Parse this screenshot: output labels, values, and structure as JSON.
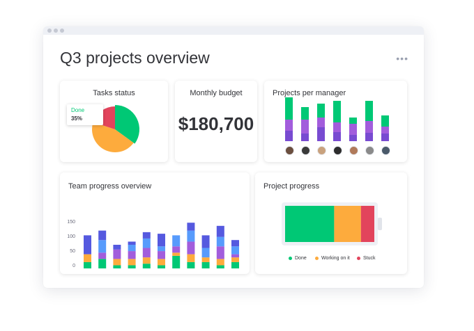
{
  "page": {
    "title": "Q3 projects overview"
  },
  "colors": {
    "done": "#00c875",
    "working": "#fdab3d",
    "stuck": "#e2445c",
    "purple": "#a25ddc",
    "blue": "#579bfc",
    "indigo": "#5559df",
    "dark_purple": "#784bd1"
  },
  "tasks_status": {
    "title": "Tasks status",
    "tooltip": {
      "label": "Done",
      "value": "35%"
    },
    "chart_data": {
      "type": "pie",
      "slices": [
        {
          "name": "Done",
          "value": 35,
          "color": "#00c875"
        },
        {
          "name": "Working on it",
          "value": 45,
          "color": "#fdab3d"
        },
        {
          "name": "Stuck",
          "value": 20,
          "color": "#e2445c"
        }
      ]
    }
  },
  "monthly_budget": {
    "title": "Monthly budget",
    "value": "$180,700"
  },
  "projects_per_manager": {
    "title": "Projects per manager",
    "avatars": [
      "avatar-1",
      "avatar-2",
      "avatar-3",
      "avatar-4",
      "avatar-5",
      "avatar-6",
      "avatar-7"
    ],
    "chart_data": {
      "type": "bar",
      "stacked": true,
      "segments": [
        "#00c875",
        "#a25ddc",
        "#784bd1"
      ],
      "bars": [
        [
          32,
          16,
          15
        ],
        [
          18,
          20,
          11
        ],
        [
          20,
          14,
          20
        ],
        [
          31,
          14,
          13
        ],
        [
          9,
          16,
          9
        ],
        [
          29,
          17,
          12
        ],
        [
          16,
          10,
          11
        ]
      ]
    }
  },
  "team_progress": {
    "title": "Team progress overview",
    "chart_data": {
      "type": "bar",
      "stacked": true,
      "yticks": [
        "150",
        "100",
        "50",
        "0"
      ],
      "ymax": 150,
      "segments": [
        "#00c875",
        "#fdab3d",
        "#a25ddc",
        "#579bfc",
        "#5559df"
      ],
      "bars": [
        [
          20,
          25,
          0,
          0,
          60
        ],
        [
          30,
          0,
          20,
          40,
          30
        ],
        [
          10,
          20,
          30,
          0,
          15
        ],
        [
          10,
          20,
          25,
          20,
          10
        ],
        [
          15,
          20,
          30,
          30,
          20
        ],
        [
          10,
          20,
          25,
          15,
          40
        ],
        [
          40,
          10,
          20,
          35,
          0
        ],
        [
          20,
          25,
          40,
          35,
          25
        ],
        [
          20,
          15,
          0,
          30,
          40
        ],
        [
          10,
          20,
          40,
          30,
          35
        ],
        [
          20,
          15,
          10,
          25,
          20
        ]
      ]
    }
  },
  "project_progress": {
    "title": "Project progress",
    "chart_data": {
      "type": "bar",
      "orientation": "horizontal",
      "stacked": true,
      "segments": [
        {
          "name": "Done",
          "value": 55,
          "color": "#00c875"
        },
        {
          "name": "Working on it",
          "value": 30,
          "color": "#fdab3d"
        },
        {
          "name": "Stuck",
          "value": 15,
          "color": "#e2445c"
        }
      ]
    },
    "legend": [
      "Done",
      "Working on it",
      "Stuck"
    ]
  }
}
